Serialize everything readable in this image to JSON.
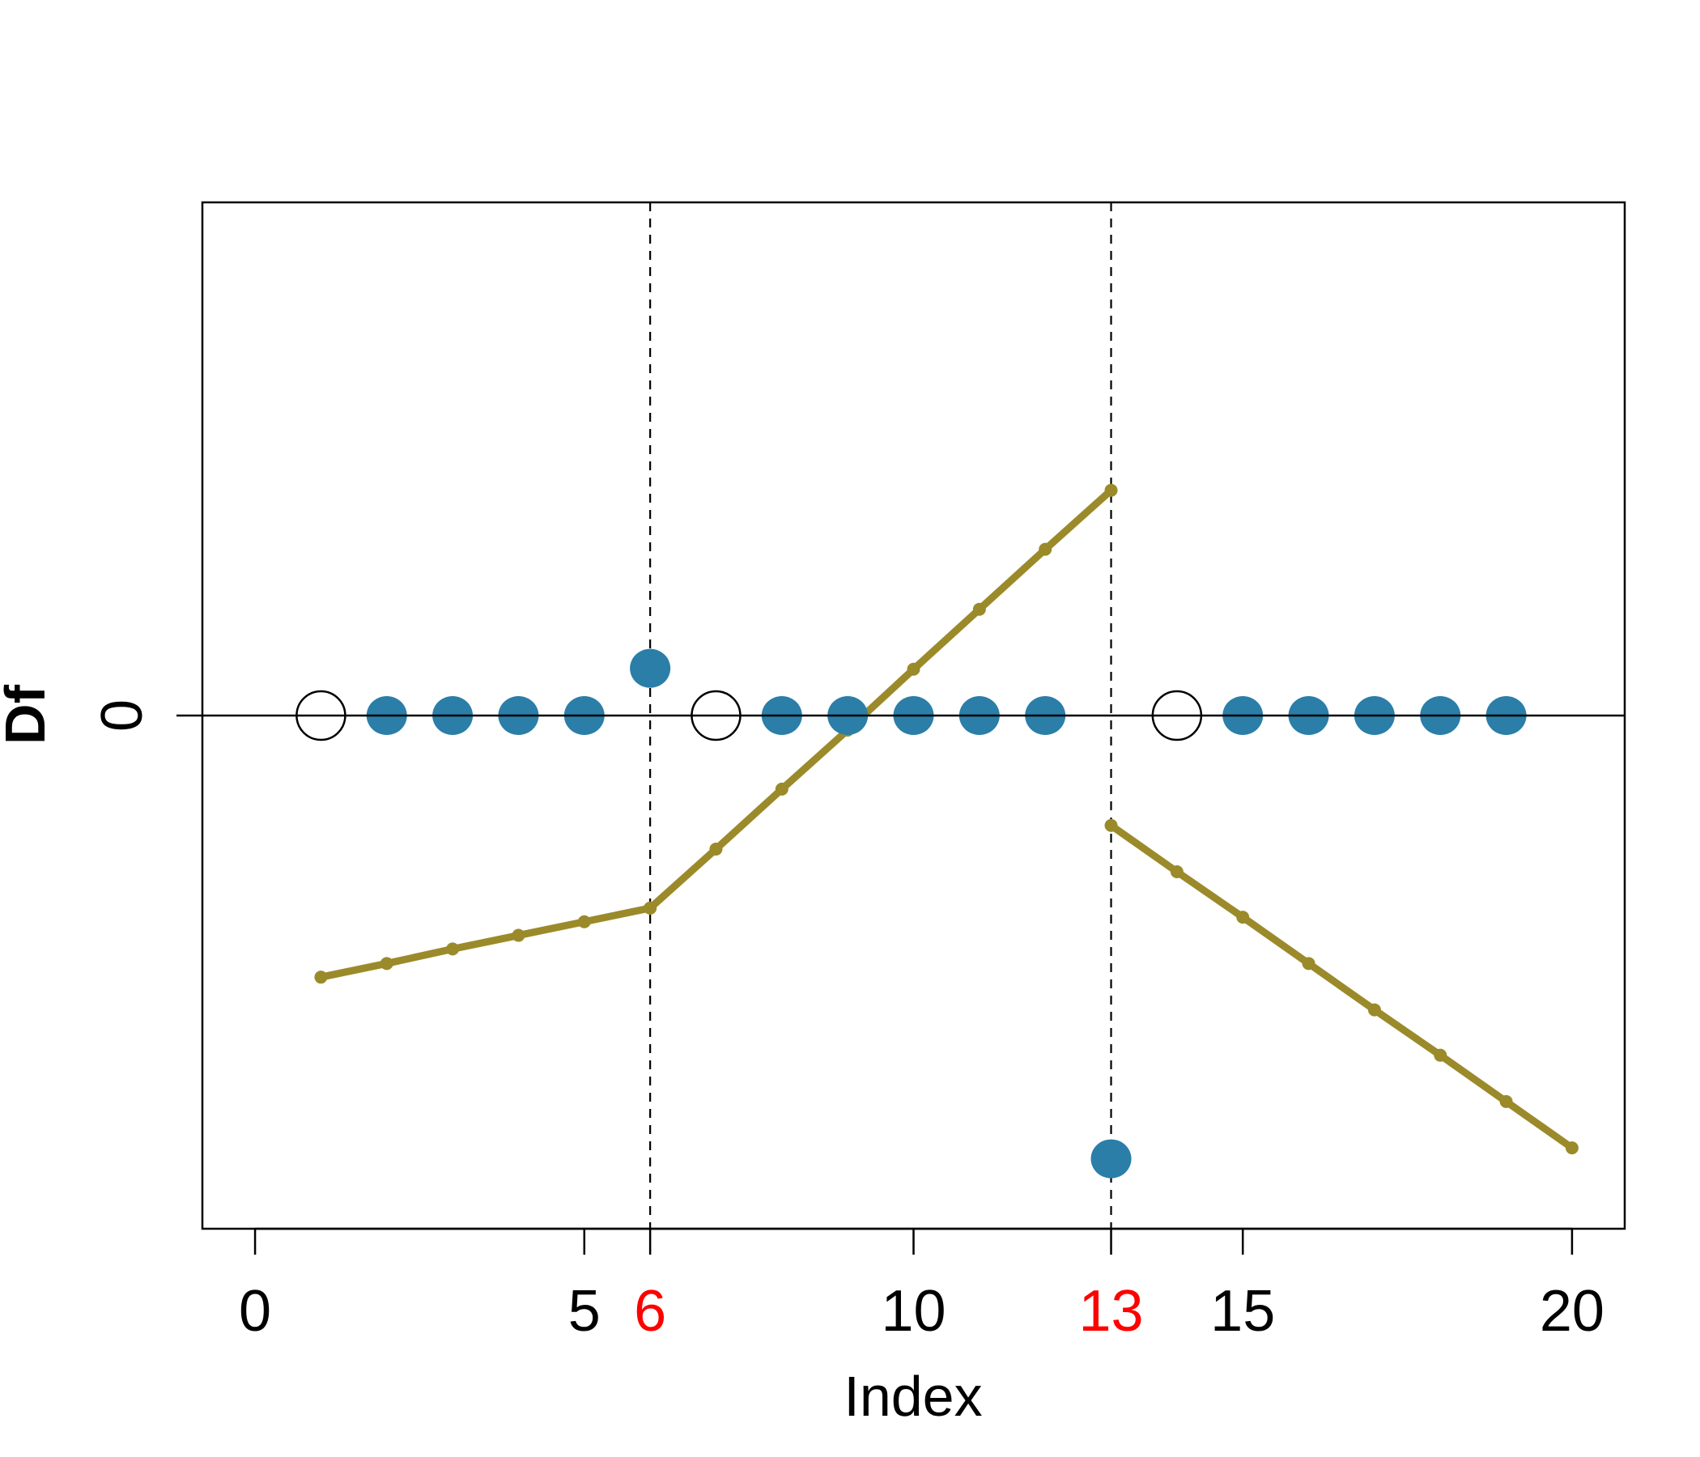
{
  "chart_data": {
    "type": "line",
    "title": "",
    "xlabel": "Index",
    "ylabel": "Df",
    "xlim": [
      -0.8,
      20.8
    ],
    "ylim": [
      -5.65,
      5.65
    ],
    "grid": false,
    "legend": "none",
    "x_ticks": [
      {
        "value": 0,
        "label": "0",
        "color": "#000000"
      },
      {
        "value": 5,
        "label": "5",
        "color": "#000000"
      },
      {
        "value": 6,
        "label": "6",
        "color": "#ff0000"
      },
      {
        "value": 10,
        "label": "10",
        "color": "#000000"
      },
      {
        "value": 13,
        "label": "13",
        "color": "#ff0000"
      },
      {
        "value": 15,
        "label": "15",
        "color": "#000000"
      },
      {
        "value": 20,
        "label": "20",
        "color": "#000000"
      }
    ],
    "y_ticks": [
      {
        "value": 0,
        "label": "0"
      }
    ],
    "horizontal_reference": 0,
    "vertical_lines": [
      6,
      13
    ],
    "line_segments": [
      {
        "x": [
          1,
          2,
          3,
          4,
          5,
          6
        ],
        "y": [
          -2.88,
          -2.73,
          -2.57,
          -2.42,
          -2.27,
          -2.12
        ]
      },
      {
        "x": [
          6,
          7,
          8,
          9,
          10,
          11,
          12,
          13
        ],
        "y": [
          -2.12,
          -1.47,
          -0.81,
          -0.16,
          0.51,
          1.17,
          1.83,
          2.48
        ]
      },
      {
        "x": [
          13,
          14,
          15,
          16,
          17,
          18,
          19,
          20
        ],
        "y": [
          -1.21,
          -1.72,
          -2.22,
          -2.73,
          -3.24,
          -3.74,
          -4.25,
          -4.76
        ]
      }
    ],
    "open_points": {
      "x": [
        1,
        7,
        14
      ],
      "y": [
        0,
        0,
        0
      ]
    },
    "filled_points": {
      "x": [
        2,
        3,
        4,
        5,
        6,
        8,
        9,
        10,
        11,
        12,
        13,
        15,
        16,
        17,
        18,
        19
      ],
      "y": [
        0,
        0,
        0,
        0,
        0.52,
        0,
        0,
        0,
        0,
        0,
        -4.88,
        0,
        0,
        0,
        0,
        0
      ]
    },
    "colors": {
      "line": "#9b8a2a",
      "filled_point": "#2a7ea8",
      "highlight_tick": "#ff0000"
    }
  }
}
